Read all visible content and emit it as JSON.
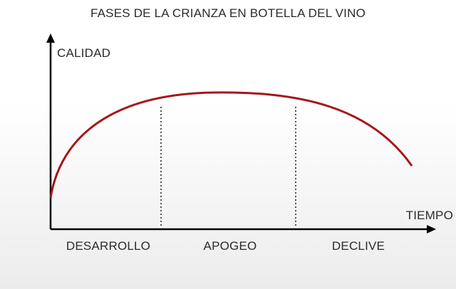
{
  "title": "FASES DE LA CRIANZA EN BOTELLA DEL VINO",
  "y_axis_label": "CALIDAD",
  "x_axis_label": "TIEMPO",
  "phases": [
    "DESARROLLO",
    "APOGEO",
    "DECLIVE"
  ]
}
